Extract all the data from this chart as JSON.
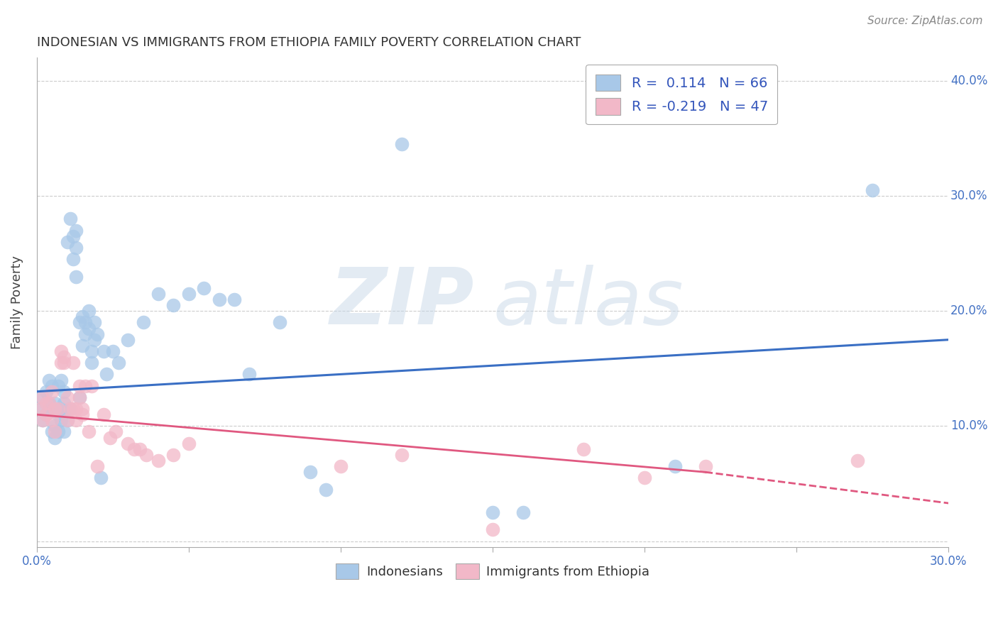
{
  "title": "INDONESIAN VS IMMIGRANTS FROM ETHIOPIA FAMILY POVERTY CORRELATION CHART",
  "source": "Source: ZipAtlas.com",
  "ylabel": "Family Poverty",
  "watermark": "ZIPatlas",
  "xlim": [
    0.0,
    0.3
  ],
  "ylim": [
    -0.005,
    0.42
  ],
  "legend1_label": "R =  0.114   N = 66",
  "legend2_label": "R = -0.219   N = 47",
  "indonesian_color": "#A8C8E8",
  "ethiopia_color": "#F2B8C8",
  "line_indonesian_color": "#3A6FC4",
  "line_ethiopia_color": "#E05880",
  "indonesian_scatter": [
    [
      0.001,
      0.125
    ],
    [
      0.002,
      0.115
    ],
    [
      0.002,
      0.105
    ],
    [
      0.003,
      0.13
    ],
    [
      0.003,
      0.11
    ],
    [
      0.004,
      0.12
    ],
    [
      0.004,
      0.14
    ],
    [
      0.005,
      0.095
    ],
    [
      0.005,
      0.115
    ],
    [
      0.005,
      0.135
    ],
    [
      0.006,
      0.09
    ],
    [
      0.006,
      0.12
    ],
    [
      0.006,
      0.1
    ],
    [
      0.007,
      0.135
    ],
    [
      0.007,
      0.11
    ],
    [
      0.007,
      0.095
    ],
    [
      0.008,
      0.115
    ],
    [
      0.008,
      0.14
    ],
    [
      0.008,
      0.105
    ],
    [
      0.009,
      0.095
    ],
    [
      0.009,
      0.13
    ],
    [
      0.009,
      0.12
    ],
    [
      0.01,
      0.26
    ],
    [
      0.01,
      0.105
    ],
    [
      0.011,
      0.115
    ],
    [
      0.011,
      0.28
    ],
    [
      0.012,
      0.245
    ],
    [
      0.012,
      0.265
    ],
    [
      0.013,
      0.255
    ],
    [
      0.013,
      0.27
    ],
    [
      0.013,
      0.23
    ],
    [
      0.014,
      0.125
    ],
    [
      0.014,
      0.19
    ],
    [
      0.015,
      0.17
    ],
    [
      0.015,
      0.195
    ],
    [
      0.016,
      0.19
    ],
    [
      0.016,
      0.18
    ],
    [
      0.017,
      0.2
    ],
    [
      0.017,
      0.185
    ],
    [
      0.018,
      0.155
    ],
    [
      0.018,
      0.165
    ],
    [
      0.019,
      0.19
    ],
    [
      0.019,
      0.175
    ],
    [
      0.02,
      0.18
    ],
    [
      0.021,
      0.055
    ],
    [
      0.022,
      0.165
    ],
    [
      0.023,
      0.145
    ],
    [
      0.025,
      0.165
    ],
    [
      0.027,
      0.155
    ],
    [
      0.03,
      0.175
    ],
    [
      0.035,
      0.19
    ],
    [
      0.04,
      0.215
    ],
    [
      0.045,
      0.205
    ],
    [
      0.05,
      0.215
    ],
    [
      0.055,
      0.22
    ],
    [
      0.06,
      0.21
    ],
    [
      0.065,
      0.21
    ],
    [
      0.07,
      0.145
    ],
    [
      0.08,
      0.19
    ],
    [
      0.09,
      0.06
    ],
    [
      0.095,
      0.045
    ],
    [
      0.12,
      0.345
    ],
    [
      0.15,
      0.025
    ],
    [
      0.16,
      0.025
    ],
    [
      0.21,
      0.065
    ],
    [
      0.275,
      0.305
    ]
  ],
  "ethiopia_scatter": [
    [
      0.001,
      0.115
    ],
    [
      0.002,
      0.125
    ],
    [
      0.002,
      0.105
    ],
    [
      0.003,
      0.12
    ],
    [
      0.003,
      0.11
    ],
    [
      0.004,
      0.12
    ],
    [
      0.005,
      0.105
    ],
    [
      0.005,
      0.13
    ],
    [
      0.006,
      0.115
    ],
    [
      0.006,
      0.095
    ],
    [
      0.007,
      0.115
    ],
    [
      0.008,
      0.165
    ],
    [
      0.008,
      0.155
    ],
    [
      0.009,
      0.16
    ],
    [
      0.009,
      0.155
    ],
    [
      0.01,
      0.105
    ],
    [
      0.01,
      0.125
    ],
    [
      0.011,
      0.115
    ],
    [
      0.012,
      0.155
    ],
    [
      0.012,
      0.115
    ],
    [
      0.013,
      0.105
    ],
    [
      0.013,
      0.115
    ],
    [
      0.014,
      0.125
    ],
    [
      0.014,
      0.135
    ],
    [
      0.015,
      0.115
    ],
    [
      0.015,
      0.11
    ],
    [
      0.016,
      0.135
    ],
    [
      0.017,
      0.095
    ],
    [
      0.018,
      0.135
    ],
    [
      0.02,
      0.065
    ],
    [
      0.022,
      0.11
    ],
    [
      0.024,
      0.09
    ],
    [
      0.026,
      0.095
    ],
    [
      0.03,
      0.085
    ],
    [
      0.032,
      0.08
    ],
    [
      0.034,
      0.08
    ],
    [
      0.036,
      0.075
    ],
    [
      0.04,
      0.07
    ],
    [
      0.045,
      0.075
    ],
    [
      0.05,
      0.085
    ],
    [
      0.1,
      0.065
    ],
    [
      0.12,
      0.075
    ],
    [
      0.15,
      0.01
    ],
    [
      0.18,
      0.08
    ],
    [
      0.2,
      0.055
    ],
    [
      0.22,
      0.065
    ],
    [
      0.27,
      0.07
    ]
  ]
}
